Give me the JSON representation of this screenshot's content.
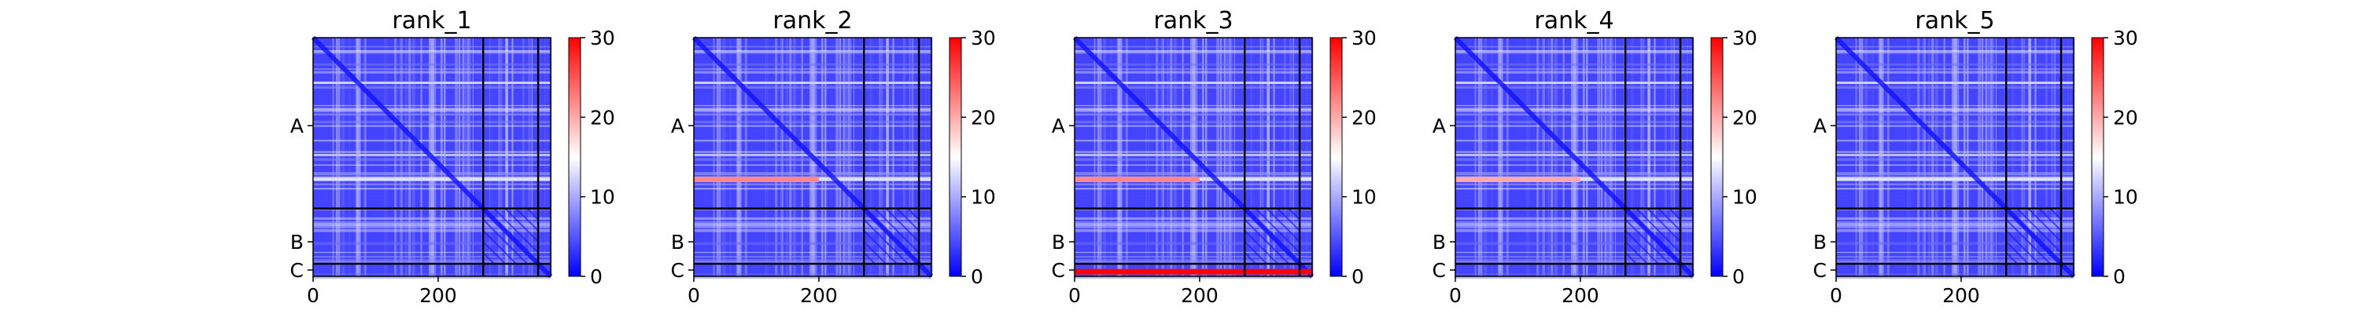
{
  "colors": {
    "low": "#0000ff",
    "mid": "#ffffff",
    "high": "#ff0000",
    "frame": "#000000"
  },
  "chart_data": [
    {
      "type": "heatmap",
      "title": "rank_1",
      "xlim": [
        0,
        380
      ],
      "ylim": [
        380,
        0
      ],
      "x_ticks": [
        {
          "value": 0,
          "label": "0"
        },
        {
          "value": 200,
          "label": "200"
        }
      ],
      "y_ticks": [
        {
          "value": 140,
          "label": "A"
        },
        {
          "value": 325,
          "label": "B"
        },
        {
          "value": 370,
          "label": "C"
        }
      ],
      "chain_boundaries": [
        272,
        360
      ],
      "colorbar": {
        "min": 0,
        "max": 30,
        "ticks": [
          0,
          10,
          20,
          30
        ],
        "colormap": "bwr"
      },
      "highlights": []
    },
    {
      "type": "heatmap",
      "title": "rank_2",
      "xlim": [
        0,
        380
      ],
      "ylim": [
        380,
        0
      ],
      "x_ticks": [
        {
          "value": 0,
          "label": "0"
        },
        {
          "value": 200,
          "label": "200"
        }
      ],
      "y_ticks": [
        {
          "value": 140,
          "label": "A"
        },
        {
          "value": 325,
          "label": "B"
        },
        {
          "value": 370,
          "label": "C"
        }
      ],
      "chain_boundaries": [
        272,
        360
      ],
      "colorbar": {
        "min": 0,
        "max": 30,
        "ticks": [
          0,
          10,
          20,
          30
        ],
        "colormap": "bwr"
      },
      "highlights": [
        {
          "row": 225,
          "x_from": 0,
          "x_to": 200,
          "value": 22
        }
      ]
    },
    {
      "type": "heatmap",
      "title": "rank_3",
      "xlim": [
        0,
        380
      ],
      "ylim": [
        380,
        0
      ],
      "x_ticks": [
        {
          "value": 0,
          "label": "0"
        },
        {
          "value": 200,
          "label": "200"
        }
      ],
      "y_ticks": [
        {
          "value": 140,
          "label": "A"
        },
        {
          "value": 325,
          "label": "B"
        },
        {
          "value": 370,
          "label": "C"
        }
      ],
      "chain_boundaries": [
        272,
        360
      ],
      "colorbar": {
        "min": 0,
        "max": 30,
        "ticks": [
          0,
          10,
          20,
          30
        ],
        "colormap": "bwr"
      },
      "highlights": [
        {
          "row": 225,
          "x_from": 0,
          "x_to": 200,
          "value": 22
        },
        {
          "row": 372,
          "x_from": 0,
          "x_to": 380,
          "value": 30
        }
      ]
    },
    {
      "type": "heatmap",
      "title": "rank_4",
      "xlim": [
        0,
        380
      ],
      "ylim": [
        380,
        0
      ],
      "x_ticks": [
        {
          "value": 0,
          "label": "0"
        },
        {
          "value": 200,
          "label": "200"
        }
      ],
      "y_ticks": [
        {
          "value": 140,
          "label": "A"
        },
        {
          "value": 325,
          "label": "B"
        },
        {
          "value": 370,
          "label": "C"
        }
      ],
      "chain_boundaries": [
        272,
        360
      ],
      "colorbar": {
        "min": 0,
        "max": 30,
        "ticks": [
          0,
          10,
          20,
          30
        ],
        "colormap": "bwr"
      },
      "highlights": [
        {
          "row": 225,
          "x_from": 0,
          "x_to": 200,
          "value": 20
        }
      ]
    },
    {
      "type": "heatmap",
      "title": "rank_5",
      "xlim": [
        0,
        380
      ],
      "ylim": [
        380,
        0
      ],
      "x_ticks": [
        {
          "value": 0,
          "label": "0"
        },
        {
          "value": 200,
          "label": "200"
        }
      ],
      "y_ticks": [
        {
          "value": 140,
          "label": "A"
        },
        {
          "value": 325,
          "label": "B"
        },
        {
          "value": 370,
          "label": "C"
        }
      ],
      "chain_boundaries": [
        272,
        360
      ],
      "colorbar": {
        "min": 0,
        "max": 30,
        "ticks": [
          0,
          10,
          20,
          30
        ],
        "colormap": "bwr"
      },
      "highlights": []
    }
  ]
}
